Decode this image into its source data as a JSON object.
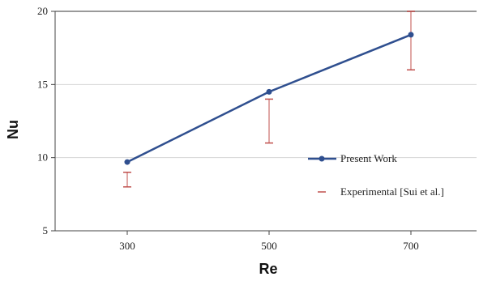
{
  "chart_data": {
    "type": "line",
    "title": "",
    "xlabel": "Re",
    "ylabel": "Nu",
    "categories": [
      "300",
      "500",
      "700"
    ],
    "ylim": [
      5,
      20
    ],
    "yticks": [
      "5",
      "10",
      "15",
      "20"
    ],
    "grid": true,
    "legend_position": "right",
    "series": [
      {
        "name": "Present Work",
        "type": "line",
        "color": "#2f4f8f",
        "values": [
          9.7,
          14.5,
          18.4
        ]
      },
      {
        "name": "Experimental [Sui et al.]",
        "type": "errorbar",
        "color": "#c0504d",
        "low": [
          8.0,
          11.0,
          16.0
        ],
        "high": [
          9.0,
          14.0,
          20.0
        ]
      }
    ]
  }
}
